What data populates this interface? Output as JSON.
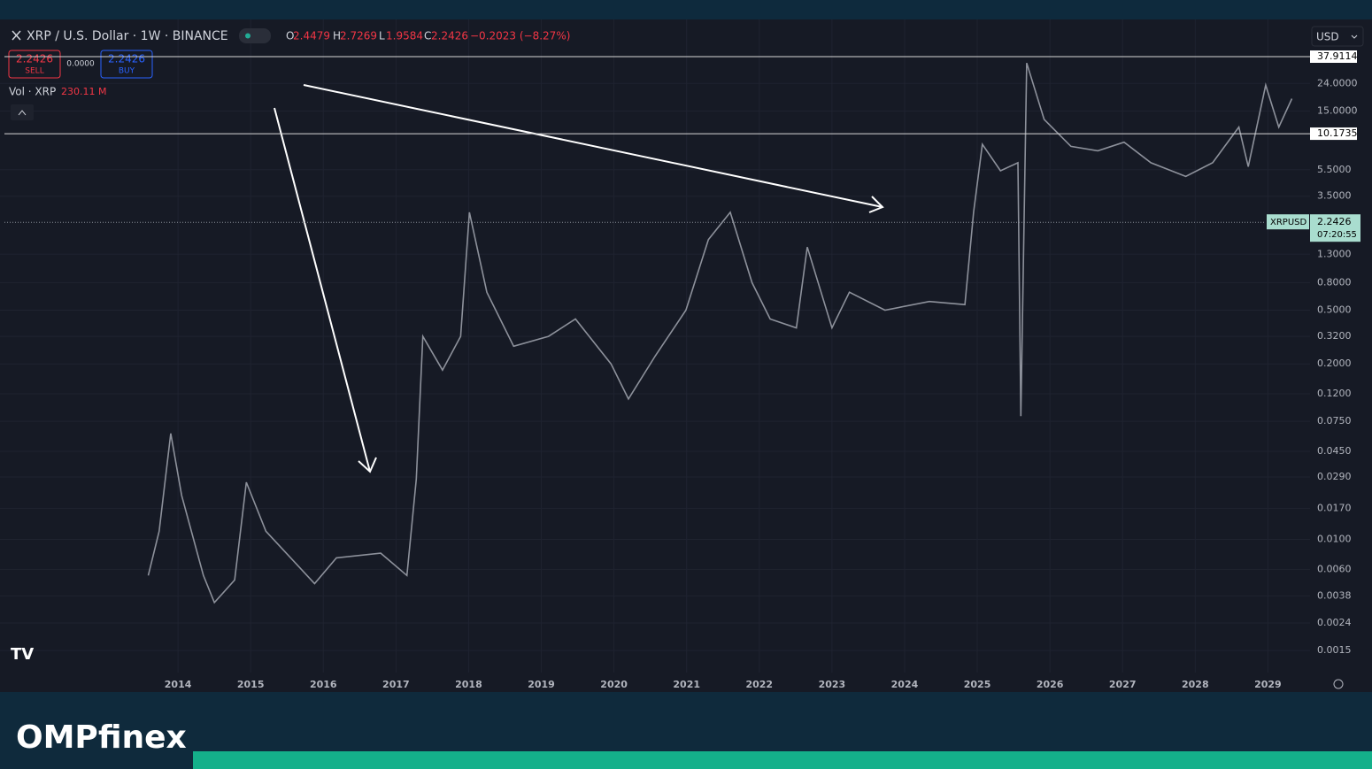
{
  "header": {
    "symbol": "XRP / U.S. Dollar · 1W · BINANCE",
    "ohlc": [
      {
        "letter": "O",
        "value": "2.4479"
      },
      {
        "letter": "H",
        "value": "2.7269"
      },
      {
        "letter": "L",
        "value": "1.9584"
      },
      {
        "letter": "C",
        "value": "2.2426"
      }
    ],
    "change": "−0.2023 (−8.27%)",
    "sell_price": "2.2426",
    "sell_label": "SELL",
    "spread": "0.0000",
    "buy_price": "2.2426",
    "buy_label": "BUY",
    "volume_label": "Vol · XRP",
    "volume_value": "230.11 M",
    "currency": "USD"
  },
  "chart_data": {
    "type": "line",
    "log_scale": true,
    "color": "#8d919b",
    "x": [
      2013.59,
      2013.74,
      2013.9,
      2014.05,
      2014.35,
      2014.5,
      2014.78,
      2014.94,
      2015.21,
      2015.88,
      2016.18,
      2016.79,
      2017.15,
      2017.28,
      2017.37,
      2017.64,
      2017.89,
      2018.01,
      2018.25,
      2018.62,
      2019.1,
      2019.47,
      2019.96,
      2020.2,
      2020.57,
      2020.99,
      2021.3,
      2021.6,
      2021.9,
      2022.15,
      2022.51,
      2022.66,
      2023.0,
      2023.24,
      2023.73,
      2024.34,
      2024.83,
      2024.95,
      2025.07,
      2025.32,
      2025.56,
      2025.6,
      2025.68,
      2025.92,
      2026.29,
      2026.66,
      2027.02,
      2027.39,
      2027.87,
      2028.24,
      2028.6,
      2028.73,
      2028.97,
      2029.15,
      2029.33
    ],
    "series": [
      {
        "name": "XRPUSD",
        "values": [
          0.0054,
          0.0115,
          0.061,
          0.0212,
          0.0054,
          0.0034,
          0.005,
          0.0265,
          0.0115,
          0.0047,
          0.0073,
          0.0079,
          0.0054,
          0.028,
          0.32,
          0.18,
          0.32,
          2.66,
          0.68,
          0.27,
          0.32,
          0.43,
          0.2,
          0.11,
          0.23,
          0.5,
          1.67,
          2.66,
          0.8,
          0.43,
          0.37,
          1.47,
          0.37,
          0.68,
          0.5,
          0.58,
          0.55,
          2.66,
          8.5,
          5.4,
          6.2,
          0.082,
          34,
          13.0,
          8.2,
          7.6,
          8.8,
          6.2,
          4.9,
          6.2,
          11.4,
          5.8,
          23.3,
          11.4,
          18.5
        ]
      }
    ],
    "xlim": [
      2011.55,
      2029.58
    ],
    "xticks": [
      2014,
      2015,
      2016,
      2017,
      2018,
      2019,
      2020,
      2021,
      2022,
      2023,
      2024,
      2025,
      2026,
      2027,
      2028,
      2029
    ],
    "ylim": [
      0.00103,
      71.5
    ],
    "yticks": [
      {
        "value": 24,
        "label": "24.0000"
      },
      {
        "value": 15,
        "label": "15.0000"
      },
      {
        "value": 5.5,
        "label": "5.5000"
      },
      {
        "value": 3.5,
        "label": "3.5000"
      },
      {
        "value": 1.3,
        "label": "1.3000"
      },
      {
        "value": 0.8,
        "label": "0.8000"
      },
      {
        "value": 0.5,
        "label": "0.5000"
      },
      {
        "value": 0.32,
        "label": "0.3200"
      },
      {
        "value": 0.2,
        "label": "0.2000"
      },
      {
        "value": 0.12,
        "label": "0.1200"
      },
      {
        "value": 0.075,
        "label": "0.0750"
      },
      {
        "value": 0.045,
        "label": "0.0450"
      },
      {
        "value": 0.029,
        "label": "0.0290"
      },
      {
        "value": 0.017,
        "label": "0.0170"
      },
      {
        "value": 0.01,
        "label": "0.0100"
      },
      {
        "value": 0.006,
        "label": "0.0060"
      },
      {
        "value": 0.0038,
        "label": "0.0038"
      },
      {
        "value": 0.0024,
        "label": "0.0024"
      },
      {
        "value": 0.0015,
        "label": "0.0015"
      }
    ],
    "price_lines": [
      37.9114,
      10.1735
    ],
    "last_price": 2.2426,
    "countdown": "07:20:55"
  },
  "footer": {
    "logo": "OMPfinex"
  }
}
